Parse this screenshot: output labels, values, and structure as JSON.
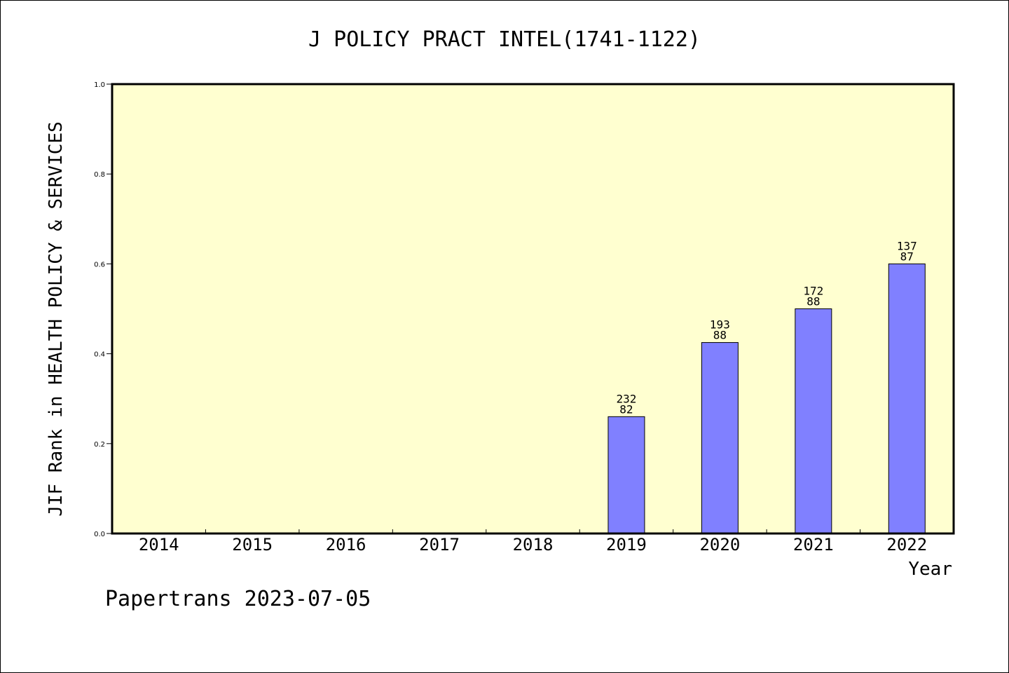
{
  "chart_data": {
    "type": "bar",
    "title": "J POLICY PRACT INTEL(1741-1122)",
    "xlabel": "Year",
    "ylabel": "JIF Rank in HEALTH POLICY & SERVICES",
    "ylim": [
      0,
      1.0
    ],
    "yticks": [
      "0.0",
      "0.2",
      "0.4",
      "0.6",
      "0.8",
      "1.0"
    ],
    "categories": [
      "2014",
      "2015",
      "2016",
      "2017",
      "2018",
      "2019",
      "2020",
      "2021",
      "2022"
    ],
    "values": [
      null,
      null,
      null,
      null,
      null,
      0.26,
      0.425,
      0.5,
      0.6
    ],
    "labels_top": [
      null,
      null,
      null,
      null,
      null,
      "232",
      "193",
      "172",
      "137"
    ],
    "labels_bottom": [
      null,
      null,
      null,
      null,
      null,
      "82",
      "88",
      "88",
      "87"
    ],
    "grid": false,
    "colors": {
      "plot_bg": "#ffffd0",
      "bar": "#8080ff"
    }
  },
  "footer": "Papertrans 2023-07-05"
}
